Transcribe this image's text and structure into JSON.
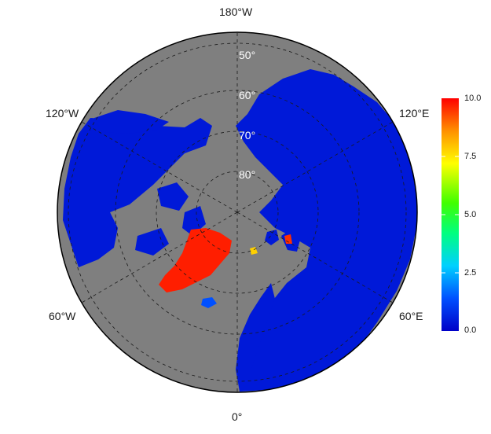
{
  "map": {
    "projection": "north-polar-stereographic",
    "ocean_color": "#7f7f7f",
    "border_color": "#000000",
    "lon_labels": {
      "top": "180°W",
      "upper_left": "120°W",
      "upper_right": "120°E",
      "lower_left": "60°W",
      "lower_right": "60°E",
      "bottom": "0°"
    },
    "lat_labels": [
      "50°",
      "60°",
      "70°",
      "80°"
    ]
  },
  "colorbar": {
    "ticks": [
      "10.0",
      "7.5",
      "5.0",
      "2.5",
      "0.0"
    ],
    "min": 0,
    "max": 10,
    "colors": [
      "#0000c8",
      "#0050ff",
      "#00d0ff",
      "#00ff80",
      "#40ff00",
      "#ffff00",
      "#ff9000",
      "#ff0000"
    ]
  }
}
